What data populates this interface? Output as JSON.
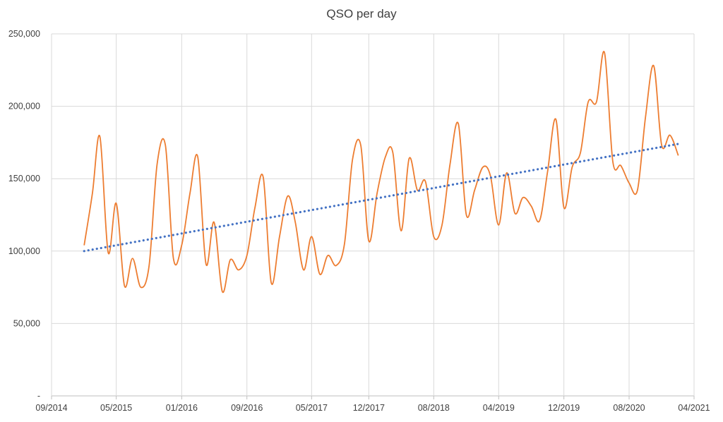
{
  "chart_data": {
    "type": "line",
    "title": "QSO per day",
    "xlabel": "",
    "ylabel": "",
    "grid": true,
    "legend": "none",
    "x_range": [
      "2014-09-01",
      "2021-04-01"
    ],
    "ylim": [
      0,
      250000
    ],
    "y_ticks": [
      0,
      50000,
      100000,
      150000,
      200000,
      250000
    ],
    "y_tick_labels": [
      "-",
      "50,000",
      "100,000",
      "150,000",
      "200,000",
      "250,000"
    ],
    "x_ticks": [
      "2014-09-01",
      "2015-05-01",
      "2016-01-01",
      "2016-09-01",
      "2017-05-01",
      "2017-12-01",
      "2018-08-01",
      "2019-04-01",
      "2019-12-01",
      "2020-08-01",
      "2021-04-01"
    ],
    "x_tick_labels": [
      "09/2014",
      "05/2015",
      "01/2016",
      "09/2016",
      "05/2017",
      "12/2017",
      "08/2018",
      "04/2019",
      "12/2019",
      "08/2020",
      "04/2021"
    ],
    "series": [
      {
        "role": "data",
        "color": "#ED7D31",
        "points": [
          [
            "2015-01-01",
            104000
          ],
          [
            "2015-02-01",
            140000
          ],
          [
            "2015-03-01",
            179000
          ],
          [
            "2015-04-01",
            99000
          ],
          [
            "2015-05-01",
            133000
          ],
          [
            "2015-06-01",
            76000
          ],
          [
            "2015-07-01",
            95000
          ],
          [
            "2015-08-01",
            75000
          ],
          [
            "2015-09-01",
            90000
          ],
          [
            "2015-10-01",
            160000
          ],
          [
            "2015-11-01",
            173000
          ],
          [
            "2015-12-01",
            95000
          ],
          [
            "2016-01-01",
            104000
          ],
          [
            "2016-02-01",
            140000
          ],
          [
            "2016-03-01",
            165000
          ],
          [
            "2016-04-01",
            91000
          ],
          [
            "2016-05-01",
            120000
          ],
          [
            "2016-06-01",
            72000
          ],
          [
            "2016-07-01",
            94000
          ],
          [
            "2016-08-01",
            87000
          ],
          [
            "2016-09-01",
            97000
          ],
          [
            "2016-10-01",
            130000
          ],
          [
            "2016-11-01",
            151000
          ],
          [
            "2016-12-01",
            78000
          ],
          [
            "2017-01-01",
            110000
          ],
          [
            "2017-02-01",
            138000
          ],
          [
            "2017-03-01",
            120000
          ],
          [
            "2017-04-01",
            87000
          ],
          [
            "2017-05-01",
            110000
          ],
          [
            "2017-06-01",
            84000
          ],
          [
            "2017-07-01",
            97000
          ],
          [
            "2017-08-01",
            90000
          ],
          [
            "2017-09-01",
            105000
          ],
          [
            "2017-10-01",
            163000
          ],
          [
            "2017-11-01",
            173000
          ],
          [
            "2017-12-01",
            107000
          ],
          [
            "2018-01-01",
            140000
          ],
          [
            "2018-02-01",
            165000
          ],
          [
            "2018-03-01",
            168000
          ],
          [
            "2018-04-01",
            114000
          ],
          [
            "2018-05-01",
            164000
          ],
          [
            "2018-06-01",
            142000
          ],
          [
            "2018-07-01",
            148000
          ],
          [
            "2018-08-01",
            110000
          ],
          [
            "2018-09-01",
            118000
          ],
          [
            "2018-10-01",
            160000
          ],
          [
            "2018-11-01",
            188000
          ],
          [
            "2018-12-01",
            125000
          ],
          [
            "2019-01-01",
            142000
          ],
          [
            "2019-02-01",
            158000
          ],
          [
            "2019-03-01",
            152000
          ],
          [
            "2019-04-01",
            118000
          ],
          [
            "2019-05-01",
            154000
          ],
          [
            "2019-06-01",
            126000
          ],
          [
            "2019-07-01",
            137000
          ],
          [
            "2019-08-01",
            131000
          ],
          [
            "2019-09-01",
            121000
          ],
          [
            "2019-10-01",
            155000
          ],
          [
            "2019-11-01",
            191000
          ],
          [
            "2019-12-01",
            130000
          ],
          [
            "2020-01-01",
            158000
          ],
          [
            "2020-02-01",
            168000
          ],
          [
            "2020-03-01",
            203000
          ],
          [
            "2020-04-01",
            203000
          ],
          [
            "2020-05-01",
            237000
          ],
          [
            "2020-06-01",
            162000
          ],
          [
            "2020-07-01",
            159000
          ],
          [
            "2020-08-01",
            147000
          ],
          [
            "2020-09-01",
            142000
          ],
          [
            "2020-10-01",
            192000
          ],
          [
            "2020-11-01",
            228000
          ],
          [
            "2020-12-01",
            173000
          ],
          [
            "2021-01-01",
            180000
          ],
          [
            "2021-02-01",
            166000
          ]
        ]
      },
      {
        "role": "linear-trendline",
        "color": "#4472C4",
        "style": "dotted",
        "points": [
          [
            "2015-01-01",
            100000
          ],
          [
            "2021-02-01",
            174000
          ]
        ]
      }
    ]
  }
}
